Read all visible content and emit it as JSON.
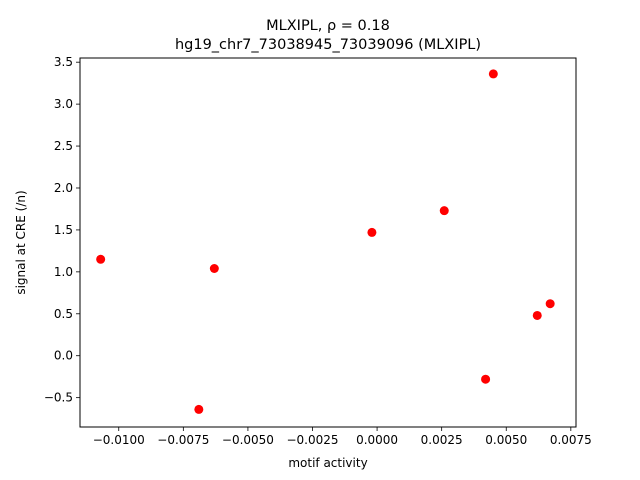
{
  "chart_data": {
    "type": "scatter",
    "title_line1": "MLXIPL, ρ = 0.18",
    "title_line2": "hg19_chr7_73038945_73039096 (MLXIPL)",
    "xlabel": "motif activity",
    "ylabel": "signal at CRE (/n)",
    "xlim": [
      -0.0115,
      0.0077
    ],
    "ylim": [
      -0.85,
      3.55
    ],
    "xticks": [
      -0.01,
      -0.0075,
      -0.005,
      -0.0025,
      0.0,
      0.0025,
      0.005,
      0.0075
    ],
    "xtick_labels": [
      "−0.0100",
      "−0.0075",
      "−0.0050",
      "−0.0025",
      "0.0000",
      "0.0025",
      "0.0050",
      "0.0075"
    ],
    "yticks": [
      -0.5,
      0.0,
      0.5,
      1.0,
      1.5,
      2.0,
      2.5,
      3.0,
      3.5
    ],
    "ytick_labels": [
      "−0.5",
      "0.0",
      "0.5",
      "1.0",
      "1.5",
      "2.0",
      "2.5",
      "3.0",
      "3.5"
    ],
    "point_color": "#ff0000",
    "grid": false,
    "points": [
      {
        "x": -0.0107,
        "y": 1.15
      },
      {
        "x": -0.0063,
        "y": 1.04
      },
      {
        "x": -0.0069,
        "y": -0.64
      },
      {
        "x": -0.0002,
        "y": 1.47
      },
      {
        "x": 0.0026,
        "y": 1.73
      },
      {
        "x": 0.0045,
        "y": 3.36
      },
      {
        "x": 0.0042,
        "y": -0.28
      },
      {
        "x": 0.0062,
        "y": 0.48
      },
      {
        "x": 0.0067,
        "y": 0.62
      }
    ]
  }
}
